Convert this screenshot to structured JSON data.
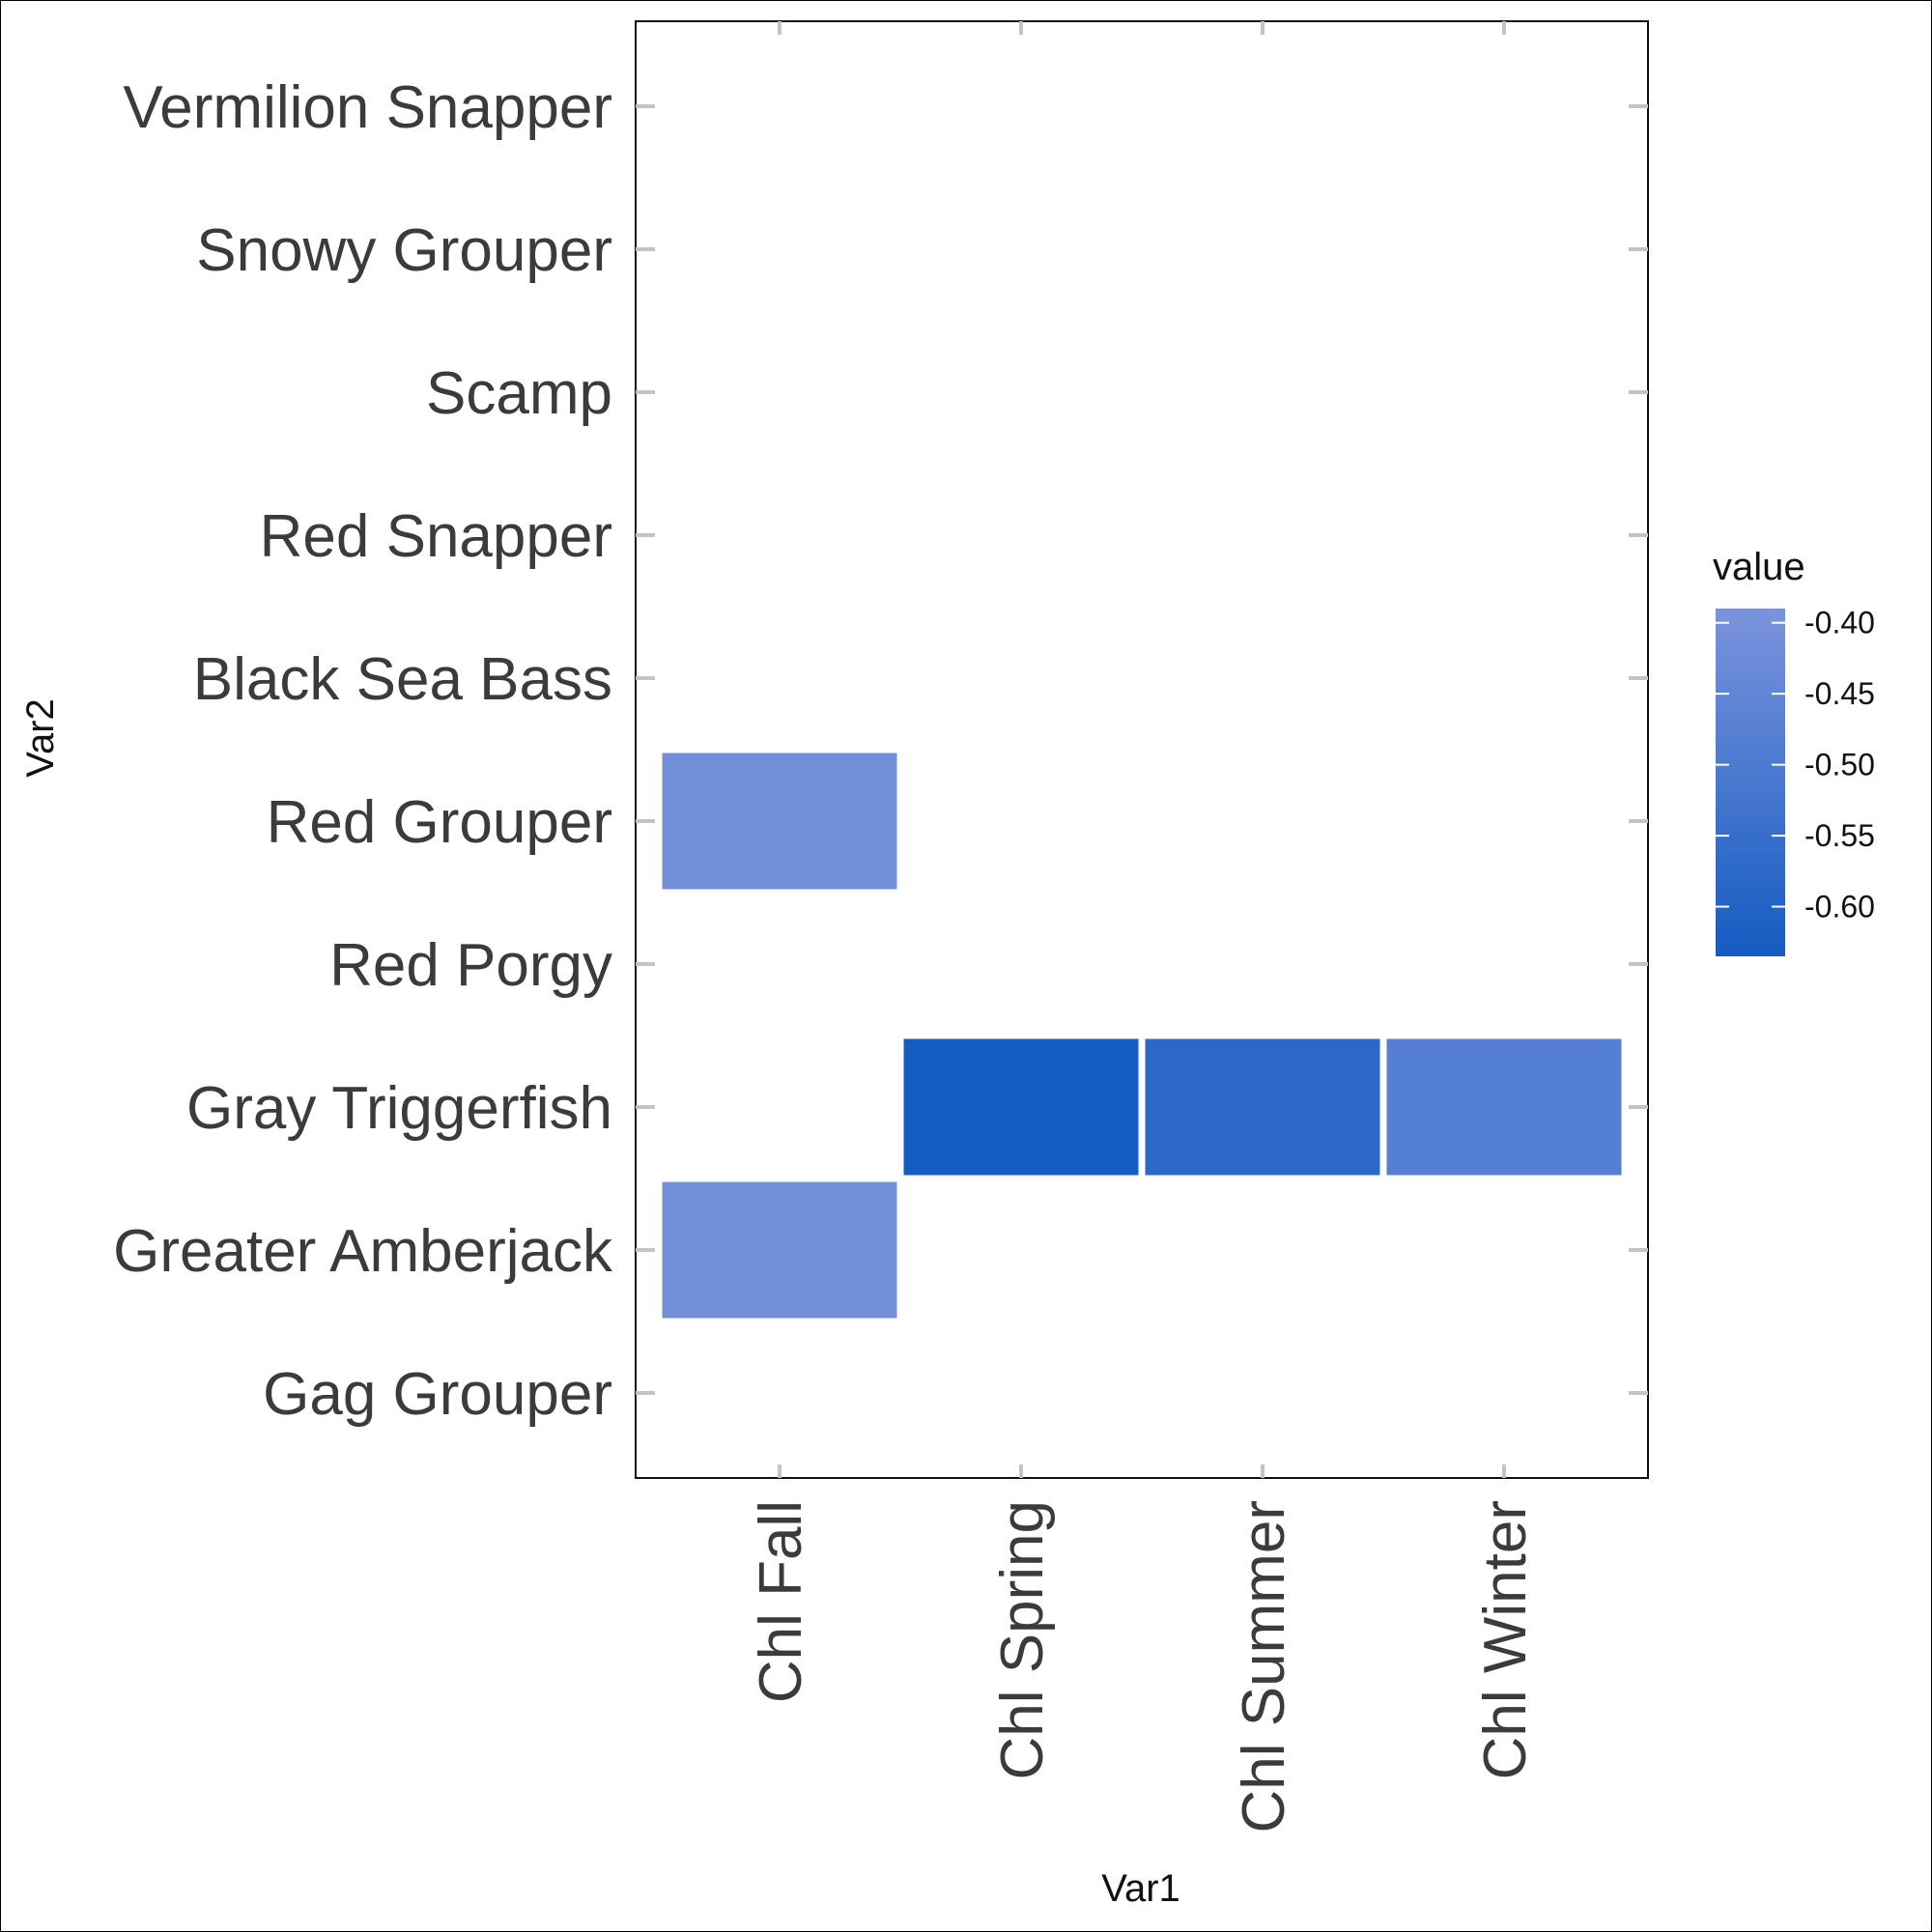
{
  "chart_data": {
    "type": "heatmap",
    "title": "",
    "xlabel": "Var1",
    "ylabel": "Var2",
    "x_categories": [
      "Chl Fall",
      "Chl Spring",
      "Chl Summer",
      "Chl Winter"
    ],
    "y_categories": [
      "Gag Grouper",
      "Greater Amberjack",
      "Gray Triggerfish",
      "Red Porgy",
      "Red Grouper",
      "Black Sea Bass",
      "Red Snapper",
      "Scamp",
      "Snowy Grouper ",
      "Vermilion Snapper"
    ],
    "cells": [
      {
        "x": "Chl Fall",
        "y": "Red Grouper",
        "value": -0.41
      },
      {
        "x": "Chl Fall",
        "y": "Greater Amberjack",
        "value": -0.41
      },
      {
        "x": "Chl Spring",
        "y": "Gray Triggerfish",
        "value": -0.63
      },
      {
        "x": "Chl Summer",
        "y": "Gray Triggerfish",
        "value": -0.58
      },
      {
        "x": "Chl Winter",
        "y": "Gray Triggerfish",
        "value": -0.48
      }
    ],
    "legend": {
      "title": "value",
      "position": "right",
      "ticks": [
        -0.4,
        -0.45,
        -0.5,
        -0.55,
        -0.6
      ],
      "tick_labels": [
        "-0.40",
        "-0.45",
        "-0.50",
        "-0.55",
        "-0.60"
      ],
      "range": [
        -0.635,
        -0.39
      ],
      "color_low": "#145cc2",
      "color_high": "#7b93dc"
    },
    "grid": false
  }
}
